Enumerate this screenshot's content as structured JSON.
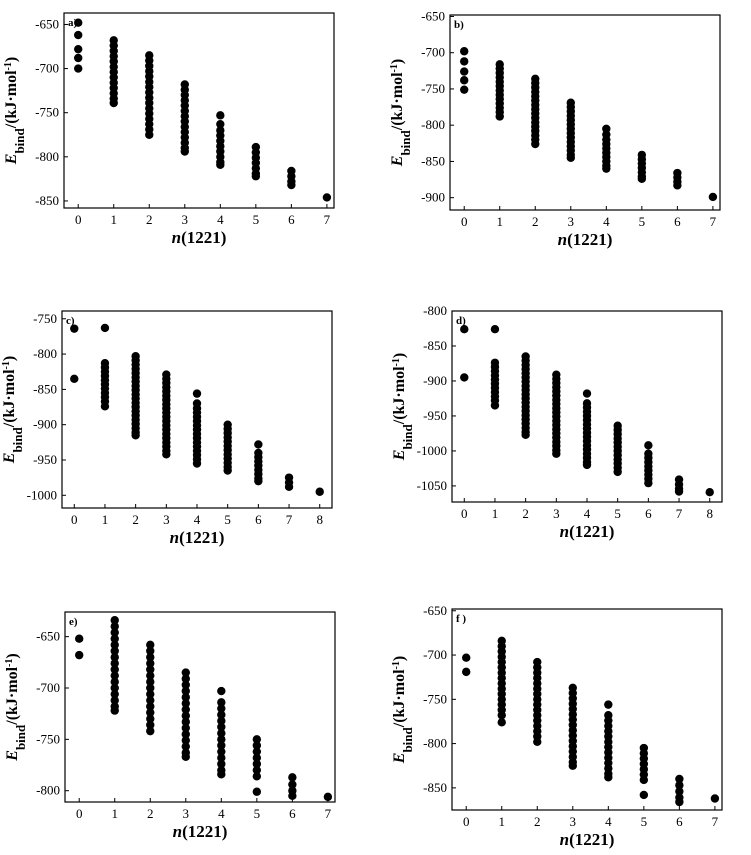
{
  "chart_data": [
    {
      "type": "scatter",
      "panel_label": "a)",
      "xlabel_var": "n",
      "xlabel_rest": "(1221)",
      "ylabel_var": "E",
      "ylabel_sub": "bind",
      "ylabel_rest": "/(kJ·mol",
      "ylabel_sup": "-1",
      "ylabel_close": ")",
      "xlim": [
        -0.4,
        7.2
      ],
      "ylim": [
        -858,
        -637
      ],
      "xticks": [
        0,
        1,
        2,
        3,
        4,
        5,
        6,
        7
      ],
      "yticks": [
        -650,
        -700,
        -750,
        -800,
        -850
      ],
      "series": [
        {
          "x": 0,
          "y": [
            -648,
            -662,
            -678,
            -688,
            -700
          ]
        },
        {
          "x": 1,
          "y": [
            -668,
            -674,
            -680,
            -686,
            -692,
            -698,
            -704,
            -710,
            -716,
            -722,
            -728,
            -734,
            -739
          ]
        },
        {
          "x": 2,
          "y": [
            -685,
            -691,
            -697,
            -703,
            -709,
            -715,
            -721,
            -727,
            -733,
            -739,
            -745,
            -751,
            -757,
            -763,
            -769,
            -775
          ]
        },
        {
          "x": 3,
          "y": [
            -718,
            -724,
            -730,
            -736,
            -742,
            -748,
            -754,
            -760,
            -766,
            -772,
            -778,
            -784,
            -790,
            -794
          ]
        },
        {
          "x": 4,
          "y": [
            -753,
            -763,
            -770,
            -776,
            -782,
            -788,
            -794,
            -800,
            -806,
            -809
          ]
        },
        {
          "x": 5,
          "y": [
            -789,
            -795,
            -801,
            -807,
            -813,
            -819,
            -822
          ]
        },
        {
          "x": 6,
          "y": [
            -816,
            -822,
            -828,
            -832
          ]
        },
        {
          "x": 7,
          "y": [
            -846
          ]
        }
      ]
    },
    {
      "type": "scatter",
      "panel_label": "b)",
      "xlabel_var": "n",
      "xlabel_rest": "(1221)",
      "ylabel_var": "E",
      "ylabel_sub": "bind",
      "ylabel_rest": "/(kJ·mol",
      "ylabel_sup": "-1",
      "ylabel_close": ")",
      "xlim": [
        -0.4,
        7.2
      ],
      "ylim": [
        -917,
        -648
      ],
      "xticks": [
        0,
        1,
        2,
        3,
        4,
        5,
        6,
        7
      ],
      "yticks": [
        -650,
        -700,
        -750,
        -800,
        -850,
        -900
      ],
      "series": [
        {
          "x": 0,
          "y": [
            -698,
            -712,
            -726,
            -738,
            -751
          ]
        },
        {
          "x": 1,
          "y": [
            -716,
            -722,
            -728,
            -734,
            -740,
            -746,
            -752,
            -758,
            -764,
            -770,
            -776,
            -782,
            -788
          ]
        },
        {
          "x": 2,
          "y": [
            -736,
            -742,
            -748,
            -754,
            -760,
            -766,
            -772,
            -778,
            -784,
            -790,
            -796,
            -802,
            -808,
            -814,
            -820,
            -826
          ]
        },
        {
          "x": 3,
          "y": [
            -769,
            -775,
            -781,
            -787,
            -793,
            -799,
            -805,
            -811,
            -817,
            -823,
            -829,
            -835,
            -841,
            -845
          ]
        },
        {
          "x": 4,
          "y": [
            -805,
            -813,
            -820,
            -826,
            -832,
            -838,
            -844,
            -850,
            -856,
            -860
          ]
        },
        {
          "x": 5,
          "y": [
            -841,
            -847,
            -853,
            -859,
            -865,
            -871,
            -874
          ]
        },
        {
          "x": 6,
          "y": [
            -866,
            -872,
            -878,
            -883
          ]
        },
        {
          "x": 7,
          "y": [
            -899
          ]
        }
      ]
    },
    {
      "type": "scatter",
      "panel_label": "c)",
      "xlabel_var": "n",
      "xlabel_rest": "(1221)",
      "ylabel_var": "E",
      "ylabel_sub": "bind",
      "ylabel_rest": "/(kJ·mol",
      "ylabel_sup": "-1",
      "ylabel_close": ")",
      "xlim": [
        -0.4,
        8.4
      ],
      "ylim": [
        -1018,
        -739
      ],
      "xticks": [
        0,
        1,
        2,
        3,
        4,
        5,
        6,
        7,
        8
      ],
      "yticks": [
        -750,
        -800,
        -850,
        -900,
        -950,
        -1000
      ],
      "series": [
        {
          "x": 0,
          "y": [
            -764,
            -835
          ]
        },
        {
          "x": 1,
          "y": [
            -763,
            -813,
            -819,
            -825,
            -831,
            -837,
            -843,
            -849,
            -855,
            -861,
            -867,
            -874
          ]
        },
        {
          "x": 2,
          "y": [
            -803,
            -809,
            -815,
            -821,
            -827,
            -833,
            -839,
            -845,
            -851,
            -857,
            -863,
            -869,
            -875,
            -881,
            -887,
            -893,
            -899,
            -905,
            -911,
            -915
          ]
        },
        {
          "x": 3,
          "y": [
            -829,
            -835,
            -841,
            -847,
            -853,
            -859,
            -865,
            -871,
            -877,
            -883,
            -889,
            -895,
            -901,
            -907,
            -913,
            -919,
            -925,
            -931,
            -937,
            -942
          ]
        },
        {
          "x": 4,
          "y": [
            -856,
            -870,
            -877,
            -883,
            -889,
            -895,
            -901,
            -907,
            -913,
            -919,
            -925,
            -931,
            -937,
            -943,
            -949,
            -955
          ]
        },
        {
          "x": 5,
          "y": [
            -900,
            -906,
            -912,
            -918,
            -924,
            -930,
            -936,
            -942,
            -948,
            -954,
            -960,
            -965
          ]
        },
        {
          "x": 6,
          "y": [
            -928,
            -940,
            -946,
            -952,
            -958,
            -964,
            -970,
            -976,
            -980
          ]
        },
        {
          "x": 7,
          "y": [
            -975,
            -982,
            -988
          ]
        },
        {
          "x": 8,
          "y": [
            -995
          ]
        }
      ]
    },
    {
      "type": "scatter",
      "panel_label": "d)",
      "xlabel_var": "n",
      "xlabel_rest": "(1221)",
      "ylabel_var": "E",
      "ylabel_sub": "bind",
      "ylabel_rest": "/(kJ·mol",
      "ylabel_sup": "-1",
      "ylabel_close": ")",
      "xlim": [
        -0.4,
        8.4
      ],
      "ylim": [
        -1073,
        -800
      ],
      "xticks": [
        0,
        1,
        2,
        3,
        4,
        5,
        6,
        7,
        8
      ],
      "yticks": [
        -800,
        -850,
        -900,
        -950,
        -1000,
        -1050
      ],
      "series": [
        {
          "x": 0,
          "y": [
            -826,
            -895
          ]
        },
        {
          "x": 1,
          "y": [
            -826,
            -874,
            -880,
            -886,
            -892,
            -898,
            -904,
            -910,
            -916,
            -922,
            -928,
            -935
          ]
        },
        {
          "x": 2,
          "y": [
            -865,
            -871,
            -877,
            -883,
            -889,
            -895,
            -901,
            -907,
            -913,
            -919,
            -925,
            -931,
            -937,
            -943,
            -949,
            -955,
            -961,
            -967,
            -973,
            -977
          ]
        },
        {
          "x": 3,
          "y": [
            -891,
            -897,
            -903,
            -909,
            -915,
            -921,
            -927,
            -933,
            -939,
            -945,
            -951,
            -957,
            -963,
            -969,
            -975,
            -981,
            -987,
            -993,
            -999,
            -1004
          ]
        },
        {
          "x": 4,
          "y": [
            -918,
            -932,
            -938,
            -944,
            -950,
            -956,
            -962,
            -968,
            -974,
            -980,
            -986,
            -992,
            -998,
            -1004,
            -1010,
            -1016,
            -1020
          ]
        },
        {
          "x": 5,
          "y": [
            -964,
            -970,
            -976,
            -982,
            -988,
            -994,
            -1000,
            -1006,
            -1012,
            -1018,
            -1024,
            -1030
          ]
        },
        {
          "x": 6,
          "y": [
            -992,
            -1004,
            -1010,
            -1016,
            -1022,
            -1028,
            -1034,
            -1040,
            -1046
          ]
        },
        {
          "x": 7,
          "y": [
            -1041,
            -1048,
            -1054,
            -1058
          ]
        },
        {
          "x": 8,
          "y": [
            -1059
          ]
        }
      ]
    },
    {
      "type": "scatter",
      "panel_label": "e)",
      "xlabel_var": "n",
      "xlabel_rest": "(1221)",
      "ylabel_var": "E",
      "ylabel_sub": "bind",
      "ylabel_rest": "/(kJ·mol",
      "ylabel_sup": "-1",
      "ylabel_close": ")",
      "xlim": [
        -0.4,
        7.2
      ],
      "ylim": [
        -811,
        -626
      ],
      "xticks": [
        0,
        1,
        2,
        3,
        4,
        5,
        6,
        7
      ],
      "yticks": [
        -650,
        -700,
        -750,
        -800
      ],
      "series": [
        {
          "x": 0,
          "y": [
            -652,
            -668
          ]
        },
        {
          "x": 1,
          "y": [
            -634,
            -640,
            -646,
            -652,
            -658,
            -664,
            -670,
            -676,
            -682,
            -688,
            -694,
            -700,
            -706,
            -712,
            -718,
            -722
          ]
        },
        {
          "x": 2,
          "y": [
            -658,
            -664,
            -670,
            -676,
            -682,
            -688,
            -694,
            -700,
            -706,
            -712,
            -718,
            -724,
            -730,
            -736,
            -742
          ]
        },
        {
          "x": 3,
          "y": [
            -685,
            -691,
            -697,
            -703,
            -709,
            -715,
            -721,
            -727,
            -733,
            -739,
            -745,
            -751,
            -757,
            -763,
            -767
          ]
        },
        {
          "x": 4,
          "y": [
            -703,
            -714,
            -720,
            -726,
            -732,
            -738,
            -744,
            -750,
            -756,
            -762,
            -768,
            -774,
            -780,
            -784
          ]
        },
        {
          "x": 5,
          "y": [
            -750,
            -756,
            -762,
            -768,
            -774,
            -780,
            -786,
            -801
          ]
        },
        {
          "x": 6,
          "y": [
            -787,
            -794,
            -800,
            -805
          ]
        },
        {
          "x": 7,
          "y": [
            -806
          ]
        }
      ]
    },
    {
      "type": "scatter",
      "panel_label": "f )",
      "xlabel_var": "n",
      "xlabel_rest": "(1221)",
      "ylabel_var": "E",
      "ylabel_sub": "bind",
      "ylabel_rest": "/(kJ·mol",
      "ylabel_sup": "-1",
      "ylabel_close": ")",
      "xlim": [
        -0.4,
        7.2
      ],
      "ylim": [
        -875,
        -648
      ],
      "xticks": [
        0,
        1,
        2,
        3,
        4,
        5,
        6,
        7
      ],
      "yticks": [
        -650,
        -700,
        -750,
        -800,
        -850
      ],
      "series": [
        {
          "x": 0,
          "y": [
            -703,
            -719
          ]
        },
        {
          "x": 1,
          "y": [
            -684,
            -690,
            -696,
            -702,
            -708,
            -714,
            -720,
            -726,
            -732,
            -738,
            -744,
            -750,
            -756,
            -762,
            -768,
            -776
          ]
        },
        {
          "x": 2,
          "y": [
            -708,
            -714,
            -720,
            -726,
            -732,
            -738,
            -744,
            -750,
            -756,
            -762,
            -768,
            -774,
            -780,
            -786,
            -792,
            -798
          ]
        },
        {
          "x": 3,
          "y": [
            -737,
            -743,
            -749,
            -755,
            -761,
            -767,
            -773,
            -779,
            -785,
            -791,
            -797,
            -803,
            -809,
            -815,
            -821,
            -825
          ]
        },
        {
          "x": 4,
          "y": [
            -756,
            -768,
            -774,
            -780,
            -786,
            -792,
            -798,
            -804,
            -810,
            -816,
            -822,
            -828,
            -834,
            -838
          ]
        },
        {
          "x": 5,
          "y": [
            -805,
            -811,
            -817,
            -823,
            -829,
            -835,
            -841,
            -858
          ]
        },
        {
          "x": 6,
          "y": [
            -840,
            -847,
            -854,
            -861,
            -866
          ]
        },
        {
          "x": 7,
          "y": [
            -862
          ]
        }
      ]
    }
  ]
}
